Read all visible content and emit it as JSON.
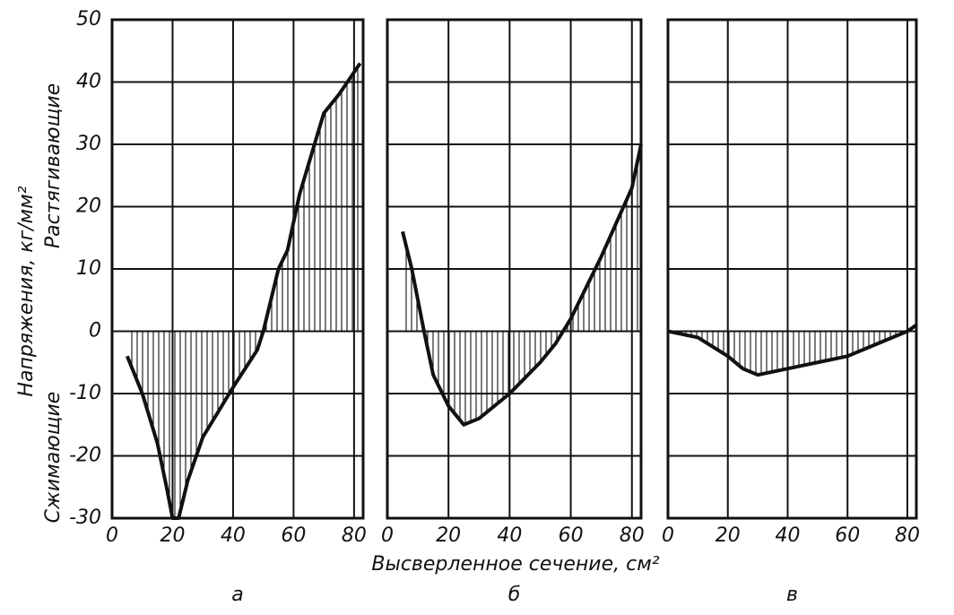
{
  "figure": {
    "ylabel": "Напряжения, кг/мм²",
    "ylabel_positive": "Растягивающие",
    "ylabel_negative": "Сжимающие",
    "xlabel": "Высверленное сечение, см²"
  },
  "chart_data": [
    {
      "type": "line",
      "title": "а",
      "fill": "hatch",
      "color": "#111111",
      "grid": true,
      "ytick_labels": true,
      "x": [
        5,
        10,
        15,
        18,
        20,
        22,
        25,
        30,
        40,
        48,
        50,
        55,
        58,
        62,
        70,
        75,
        82
      ],
      "values": [
        -4,
        -10,
        -18,
        -25,
        -30,
        -30,
        -24,
        -17,
        -9,
        -3,
        0,
        10,
        13,
        22,
        35,
        38,
        43
      ],
      "xlim": [
        0,
        83
      ],
      "xticks": [
        0,
        20,
        40,
        60,
        80
      ],
      "ylim": [
        -30,
        50
      ],
      "yticks": [
        -30,
        -20,
        -10,
        0,
        10,
        20,
        30,
        40,
        50
      ]
    },
    {
      "type": "line",
      "title": "б",
      "fill": "hatch",
      "color": "#111111",
      "grid": true,
      "ytick_labels": false,
      "x": [
        5,
        8,
        12,
        15,
        20,
        25,
        30,
        40,
        50,
        55,
        60,
        70,
        80,
        83
      ],
      "values": [
        16,
        10,
        0,
        -7,
        -12,
        -15,
        -14,
        -10,
        -5,
        -2,
        2,
        12,
        23,
        30
      ],
      "xlim": [
        0,
        83
      ],
      "xticks": [
        0,
        20,
        40,
        60,
        80
      ],
      "ylim": [
        -30,
        50
      ],
      "yticks": [
        -30,
        -20,
        -10,
        0,
        10,
        20,
        30,
        40,
        50
      ]
    },
    {
      "type": "line",
      "title": "в",
      "fill": "hatch",
      "color": "#111111",
      "grid": true,
      "ytick_labels": false,
      "x": [
        0,
        10,
        20,
        25,
        30,
        40,
        50,
        60,
        70,
        80,
        83
      ],
      "values": [
        0,
        -1,
        -4,
        -6,
        -7,
        -6,
        -5,
        -4,
        -2,
        0,
        1
      ],
      "xlim": [
        0,
        83
      ],
      "xticks": [
        0,
        20,
        40,
        60,
        80
      ],
      "ylim": [
        -30,
        50
      ],
      "yticks": [
        -30,
        -20,
        -10,
        0,
        10,
        20,
        30,
        40,
        50
      ]
    }
  ]
}
